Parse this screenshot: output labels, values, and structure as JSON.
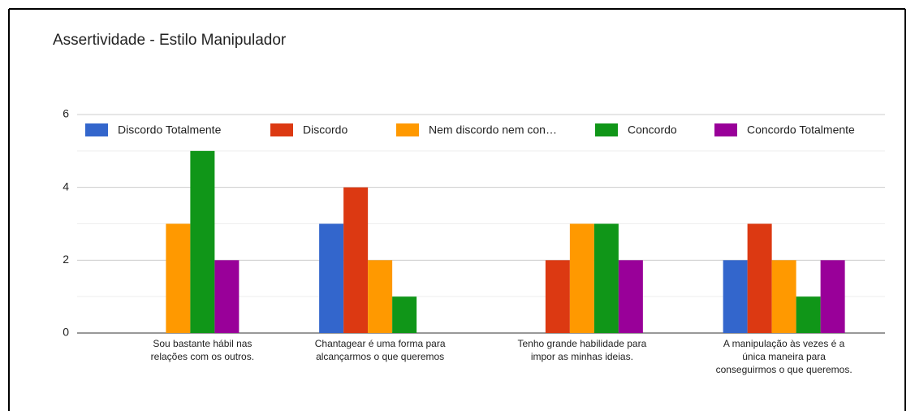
{
  "chart_data": {
    "type": "bar",
    "title": "Assertividade - Estilo Manipulador",
    "categories": [
      "Sou bastante hábil nas relações com os outros.",
      "Chantagear é uma forma para alcançarmos o que queremos",
      "Tenho grande habilidade para impor as minhas ideias.",
      "A manipulação às vezes é a única maneira para conseguirmos o que queremos."
    ],
    "series": [
      {
        "name": "Discordo Totalmente",
        "color": "#3366cc",
        "values": [
          0,
          3,
          0,
          2
        ]
      },
      {
        "name": "Discordo",
        "color": "#dc3912",
        "values": [
          0,
          4,
          2,
          3
        ]
      },
      {
        "name": "Nem discordo nem con…",
        "color": "#ff9900",
        "values": [
          3,
          2,
          3,
          2
        ]
      },
      {
        "name": "Concordo",
        "color": "#109618",
        "values": [
          5,
          1,
          3,
          1
        ]
      },
      {
        "name": "Concordo Totalmente",
        "color": "#990099",
        "values": [
          2,
          0,
          2,
          2
        ]
      }
    ],
    "ylim": [
      0,
      6
    ],
    "yticks": [
      0,
      2,
      4,
      6
    ],
    "minor_yticks": [
      1,
      3,
      5
    ],
    "grid": true,
    "legend": "top"
  }
}
